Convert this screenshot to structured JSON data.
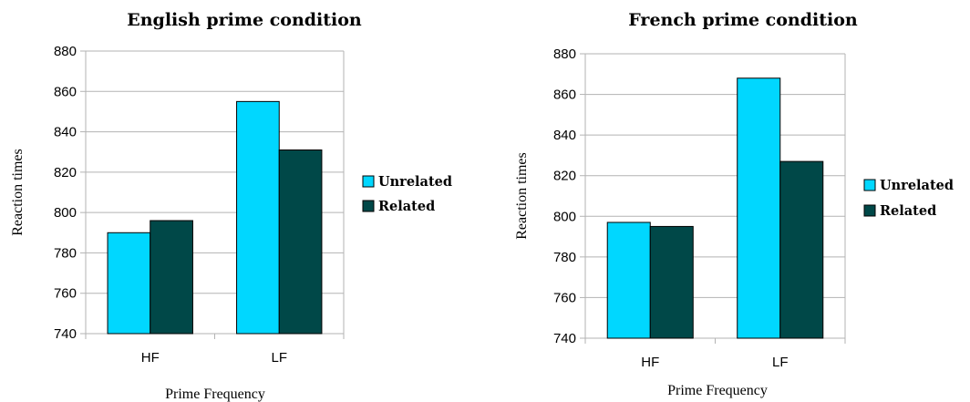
{
  "chart_data": [
    {
      "type": "bar",
      "title": "English prime condition",
      "xlabel": "Prime Frequency",
      "ylabel": "Reaction times",
      "categories": [
        "HF",
        "LF"
      ],
      "series": [
        {
          "name": "Unrelated",
          "values": [
            790,
            855
          ],
          "color": "#00d7ff"
        },
        {
          "name": "Related",
          "values": [
            796,
            831
          ],
          "color": "#004848"
        }
      ],
      "ylim": [
        740,
        880
      ],
      "ytick_step": 20,
      "grid": true,
      "legend": "right"
    },
    {
      "type": "bar",
      "title": "French prime condition",
      "xlabel": "Prime Frequency",
      "ylabel": "Reaction times",
      "categories": [
        "HF",
        "LF"
      ],
      "series": [
        {
          "name": "Unrelated",
          "values": [
            797,
            868
          ],
          "color": "#00d7ff"
        },
        {
          "name": "Related",
          "values": [
            795,
            827
          ],
          "color": "#004848"
        }
      ],
      "ylim": [
        740,
        880
      ],
      "ytick_step": 20,
      "grid": true,
      "legend": "right"
    }
  ]
}
